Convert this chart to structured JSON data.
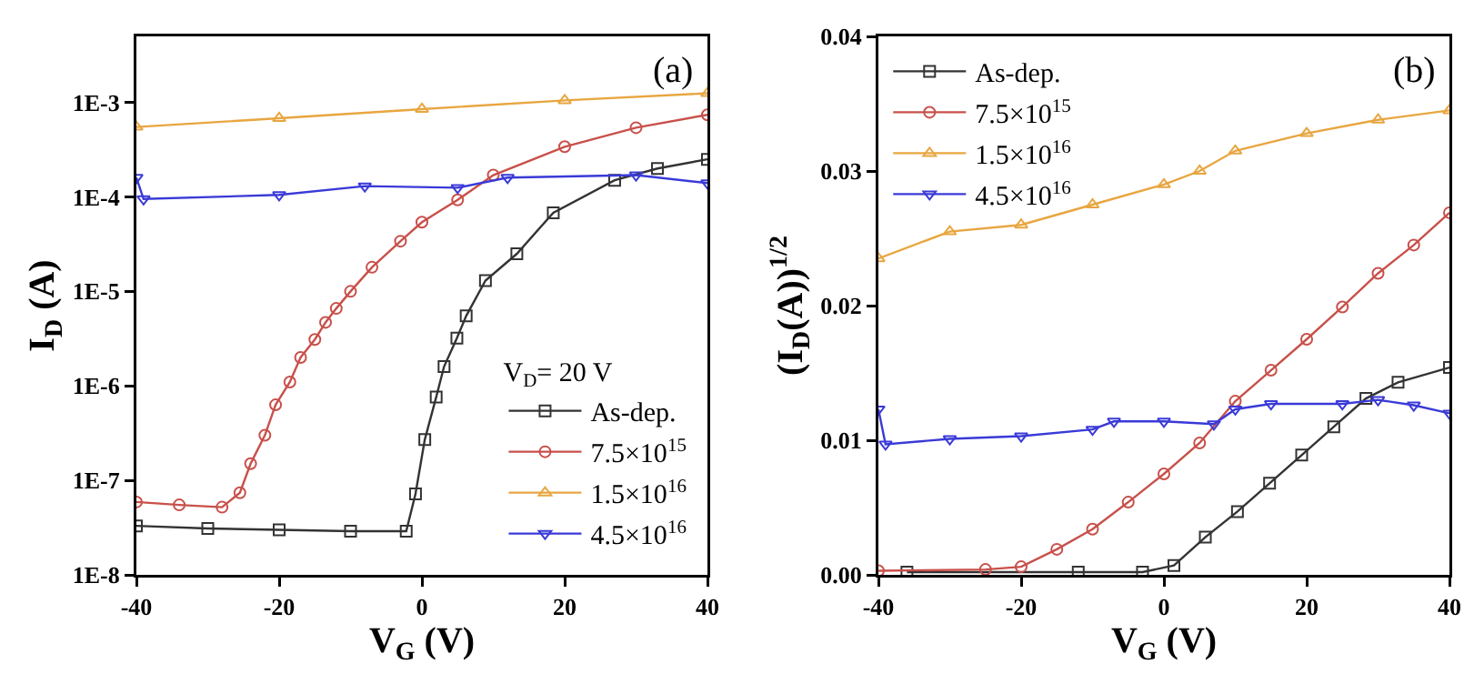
{
  "chart_data": [
    {
      "type": "line",
      "xlabel": "V$_{G}$ (V)",
      "ylabel": "I$_{D}$ (A)",
      "legend_title": "V$_{D}$= 20 V",
      "annotations": [
        "(a)"
      ],
      "log": "y",
      "grid": false,
      "legend": "bottom right",
      "line_style": "solid",
      "xlim": [
        -40,
        40
      ],
      "xticks": [
        -40,
        -20,
        0,
        20,
        40
      ],
      "ylim": [
        1e-08,
        0.005
      ],
      "yticks": [
        {
          "value": 1e-08,
          "label": "1E-8"
        },
        {
          "value": 1e-07,
          "label": "1E-7"
        },
        {
          "value": 1e-06,
          "label": "1E-6"
        },
        {
          "value": 1e-05,
          "label": "1E-5"
        },
        {
          "value": 0.0001,
          "label": "1E-4"
        },
        {
          "value": 0.001,
          "label": "1E-3"
        }
      ],
      "series": [
        {
          "name": "As-dep.",
          "color": "#333333",
          "marker": "square",
          "x": [
            -40,
            -30,
            -20,
            -10,
            -2.2,
            -0.9,
            0.4,
            2,
            3.1,
            4.9,
            6.2,
            8.9,
            13.3,
            18.4,
            27,
            33,
            40
          ],
          "values": [
            3.3e-08,
            3.1e-08,
            3e-08,
            2.9e-08,
            2.9e-08,
            7.2e-08,
            2.7e-07,
            7.6e-07,
            1.6e-06,
            3.2e-06,
            5.5e-06,
            1.3e-05,
            2.5e-05,
            6.8e-05,
            0.00015,
            0.0002,
            0.00025
          ]
        },
        {
          "name": "7.5×10$^{15}$",
          "color": "#c8504a",
          "marker": "circle",
          "x": [
            -40,
            -34,
            -28,
            -25.5,
            -24,
            -22,
            -20.5,
            -18.5,
            -17,
            -15,
            -13.5,
            -12,
            -10,
            -7,
            -3,
            0,
            5,
            10,
            20,
            30,
            40
          ],
          "values": [
            5.9e-08,
            5.5e-08,
            5.2e-08,
            7.4e-08,
            1.5e-07,
            3e-07,
            6.3e-07,
            1.1e-06,
            2e-06,
            3.1e-06,
            4.7e-06,
            6.6e-06,
            1e-05,
            1.8e-05,
            3.4e-05,
            5.4e-05,
            9.3e-05,
            0.00017,
            0.00034,
            0.00054,
            0.00074
          ]
        },
        {
          "name": "1.5×10$^{16}$",
          "color": "#e8a640",
          "marker": "triangle",
          "x": [
            -40,
            -20,
            0,
            20,
            40
          ],
          "values": [
            0.00055,
            0.00068,
            0.00085,
            0.00105,
            0.00125
          ]
        },
        {
          "name": "4.5×10$^{16}$",
          "color": "#3a3ad8",
          "marker": "triangle-down",
          "x": [
            -40,
            -39,
            -20,
            -8,
            5,
            12,
            30,
            40
          ],
          "values": [
            0.00016,
            9.5e-05,
            0.000105,
            0.00013,
            0.000125,
            0.00016,
            0.00017,
            0.00014
          ]
        }
      ]
    },
    {
      "type": "line",
      "xlabel": "V$_{G}$ (V)",
      "ylabel": "(I$_{D}$(A))$^{1/2}$",
      "annotations": [
        "(b)"
      ],
      "grid": false,
      "legend": "top left",
      "line_style": "solid",
      "xlim": [
        -40,
        40
      ],
      "xticks": [
        -40,
        -20,
        0,
        20,
        40
      ],
      "ylim": [
        0,
        0.04
      ],
      "yticks": [
        {
          "value": 0,
          "label": "0.00"
        },
        {
          "value": 0.01,
          "label": "0.01"
        },
        {
          "value": 0.02,
          "label": "0.02"
        },
        {
          "value": 0.03,
          "label": "0.03"
        },
        {
          "value": 0.04,
          "label": "0.04"
        }
      ],
      "series": [
        {
          "name": "As-dep.",
          "color": "#333333",
          "marker": "square",
          "x": [
            -36,
            -12,
            -3,
            1.4,
            5.8,
            10.3,
            14.8,
            19.3,
            23.8,
            28.3,
            32.8,
            40
          ],
          "values": [
            0.0002,
            0.0002,
            0.0002,
            0.0007,
            0.0028,
            0.0047,
            0.0068,
            0.0089,
            0.011,
            0.0131,
            0.0143,
            0.0154
          ]
        },
        {
          "name": "7.5×10$^{15}$",
          "color": "#c8504a",
          "marker": "circle",
          "x": [
            -40,
            -25,
            -20,
            -15,
            -10,
            -5,
            0,
            5,
            10,
            15,
            20,
            25,
            30,
            35,
            40
          ],
          "values": [
            0.0003,
            0.0004,
            0.0006,
            0.0019,
            0.0034,
            0.0054,
            0.0075,
            0.0098,
            0.0129,
            0.0152,
            0.0175,
            0.0199,
            0.0224,
            0.0245,
            0.0269
          ]
        },
        {
          "name": "1.5×10$^{16}$",
          "color": "#e8a640",
          "marker": "triangle",
          "x": [
            -40,
            -30,
            -20,
            -10,
            0,
            5,
            10,
            20,
            30,
            40
          ],
          "values": [
            0.0235,
            0.0255,
            0.026,
            0.0275,
            0.029,
            0.03,
            0.0315,
            0.0328,
            0.0338,
            0.0345
          ]
        },
        {
          "name": "4.5×10$^{16}$",
          "color": "#3a3ad8",
          "marker": "triangle-down",
          "x": [
            -40,
            -39,
            -30,
            -20,
            -10,
            -7,
            0,
            7,
            10,
            15,
            25,
            30,
            35,
            40
          ],
          "values": [
            0.0123,
            0.0097,
            0.0101,
            0.0103,
            0.0108,
            0.0114,
            0.0114,
            0.0112,
            0.0123,
            0.0127,
            0.0127,
            0.013,
            0.0126,
            0.012
          ]
        }
      ]
    }
  ]
}
